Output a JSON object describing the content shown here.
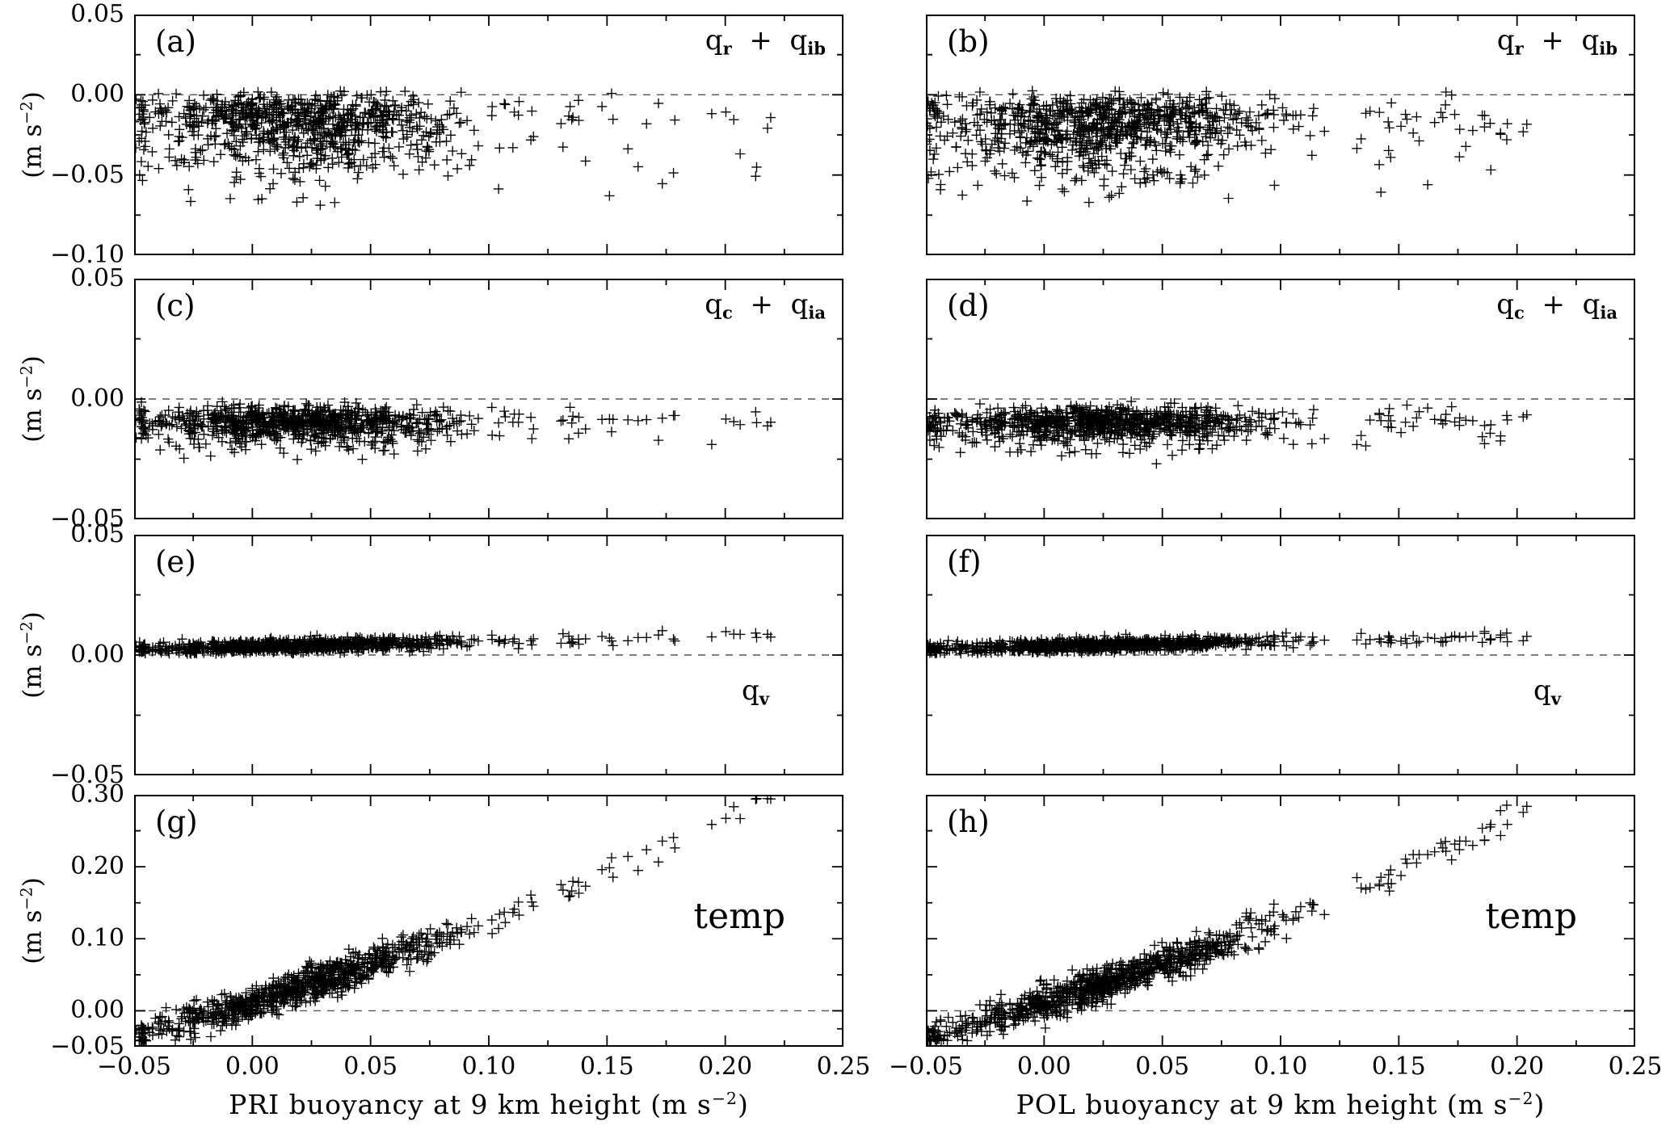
{
  "figure": {
    "background": "#ffffff",
    "ink": "#000000",
    "zero_line_color": "#555555",
    "ylabel_segments": [
      {
        "t": "(m s"
      },
      {
        "t": "−2",
        "sup": true
      },
      {
        "t": ")"
      }
    ],
    "xlabel_left_segments": [
      {
        "t": "PRI buoyancy at 9 km height (m s"
      },
      {
        "t": "−2",
        "sup": true
      },
      {
        "t": ")"
      }
    ],
    "xlabel_right_segments": [
      {
        "t": "POL buoyancy at 9 km height (m s"
      },
      {
        "t": "−2",
        "sup": true
      },
      {
        "t": ")"
      }
    ]
  },
  "chart_data": {
    "type": "scatter",
    "layout": "4 rows x 2 columns of panels, shared x axis",
    "marker": "+",
    "marker_color": "#000000",
    "x_axis": {
      "lim": [
        -0.05,
        0.25
      ],
      "ticks": [
        -0.05,
        0,
        0.05,
        0.1,
        0.15,
        0.2,
        0.25
      ],
      "tick_labels": [
        "−0.05",
        "0.00",
        "0.05",
        "0.10",
        "0.15",
        "0.20",
        "0.25"
      ]
    },
    "columns": [
      {
        "id": "PRI",
        "xlabel": "PRI buoyancy at 9 km height (m s−2)",
        "x_distribution": {
          "seed": 7,
          "n": 900,
          "mean": 0.022,
          "sd": 0.034,
          "cluster_max": 0.15,
          "min": -0.05,
          "tail_p": 0.03,
          "tail_min": 0.13,
          "tail_max": 0.22
        }
      },
      {
        "id": "POL",
        "xlabel": "POL buoyancy at 9 km height (m s−2)",
        "x_distribution": {
          "seed": 13,
          "n": 950,
          "mean": 0.025,
          "sd": 0.037,
          "cluster_max": 0.155,
          "min": -0.05,
          "tail_p": 0.035,
          "tail_min": 0.13,
          "tail_max": 0.205
        }
      }
    ],
    "rows": [
      {
        "quantity": "q_r + q_ib",
        "annotation_segments": [
          {
            "t": "q"
          },
          {
            "t": "r",
            "sub": true
          },
          {
            "t": "  +  "
          },
          {
            "t": "q"
          },
          {
            "t": "ib",
            "sub": true
          }
        ],
        "ylabel": "(m s−2)",
        "ylim": [
          -0.1,
          0.05
        ],
        "yticks": [
          0.05,
          0,
          -0.05,
          -0.1
        ],
        "ytick_labels": [
          "0.05",
          "0.00",
          "−0.05",
          "−0.10"
        ],
        "zero_line": true,
        "y_model": {
          "type": "negative_cloud",
          "base": -0.004,
          "sd_sym": 0.004,
          "sd_neg": 0.021,
          "clamp": [
            -0.092,
            0.003
          ]
        },
        "description": "Dense cloud of + markers just below zero, spreading down to about −0.08 m s−2; x mostly −0.05 to 0.12 with sparse tail to ~0.22"
      },
      {
        "quantity": "q_c + q_ia",
        "annotation_segments": [
          {
            "t": "q"
          },
          {
            "t": "c",
            "sub": true
          },
          {
            "t": "  +  "
          },
          {
            "t": "q"
          },
          {
            "t": "ia",
            "sub": true
          }
        ],
        "ylabel": "(m s−2)",
        "ylim": [
          -0.05,
          0.05
        ],
        "yticks": [
          0.05,
          0,
          -0.05
        ],
        "ytick_labels": [
          "0.05",
          "0.00",
          "−0.05"
        ],
        "zero_line": true,
        "y_model": {
          "type": "negative_cloud",
          "base": -0.006,
          "sd_sym": 0.0022,
          "sd_neg": 0.0055,
          "clamp": [
            -0.027,
            0
          ]
        },
        "description": "Thin horizontal band slightly below zero, roughly −0.005 to −0.02 m s−2 across all x"
      },
      {
        "quantity": "q_v",
        "annotation_segments": [
          {
            "t": "q"
          },
          {
            "t": "v",
            "sub": true
          }
        ],
        "ylabel": "(m s−2)",
        "ylim": [
          -0.05,
          0.05
        ],
        "yticks": [
          0.05,
          0,
          -0.05
        ],
        "ytick_labels": [
          "0.05",
          "0.00",
          "−0.05"
        ],
        "zero_line": true,
        "y_model": {
          "type": "trend_band",
          "intercept": 0.0035,
          "slope": 0.02,
          "sd": 0.0013,
          "clamp": [
            0.0005,
            0.011
          ]
        },
        "description": "Very thin band just above zero (~+0.005 m s−2), rising very slightly with x"
      },
      {
        "quantity": "temp",
        "annotation_segments": [
          {
            "t": "temp"
          }
        ],
        "ylabel": "(m s−2)",
        "ylim": [
          -0.05,
          0.3
        ],
        "yticks": [
          0.3,
          0.2,
          0.1,
          0,
          -0.05
        ],
        "ytick_labels": [
          "0.30",
          "0.20",
          "0.10",
          "0.00",
          "−0.05"
        ],
        "zero_line": true,
        "y_model": {
          "type": "quad_trend",
          "intercept": 0.011,
          "a": 1.0,
          "b": 1.5,
          "sd": 0.012,
          "clamp": [
            -0.042,
            0.295
          ]
        },
        "description": "Tight positive correlation: y rises from about −0.03 at x=−0.05 through ~0.12 at x=0.10 to ~0.27 at x=0.22"
      }
    ],
    "panels": [
      {
        "id": "a",
        "letter": "(a)",
        "row": 0,
        "col": 0,
        "seed_y": 101
      },
      {
        "id": "b",
        "letter": "(b)",
        "row": 0,
        "col": 1,
        "seed_y": 202
      },
      {
        "id": "c",
        "letter": "(c)",
        "row": 1,
        "col": 0,
        "seed_y": 103
      },
      {
        "id": "d",
        "letter": "(d)",
        "row": 1,
        "col": 1,
        "seed_y": 204
      },
      {
        "id": "e",
        "letter": "(e)",
        "row": 2,
        "col": 0,
        "seed_y": 105
      },
      {
        "id": "f",
        "letter": "(f)",
        "row": 2,
        "col": 1,
        "seed_y": 206
      },
      {
        "id": "g",
        "letter": "(g)",
        "row": 3,
        "col": 0,
        "seed_y": 107
      },
      {
        "id": "h",
        "letter": "(h)",
        "row": 3,
        "col": 1,
        "seed_y": 208
      }
    ]
  }
}
